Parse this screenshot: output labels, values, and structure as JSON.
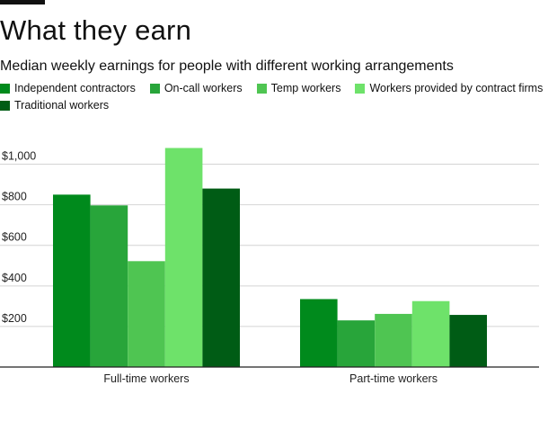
{
  "header": {
    "title": "What they earn",
    "subtitle": "Median weekly earnings for people with different working arrangements"
  },
  "legend": {
    "items": [
      {
        "label": "Independent contractors",
        "color": "#008a1c"
      },
      {
        "label": "On-call workers",
        "color": "#28a53a"
      },
      {
        "label": "Temp workers",
        "color": "#4fc552"
      },
      {
        "label": "Workers provided by contract firms",
        "color": "#6ee26a"
      },
      {
        "label": "Traditional workers",
        "color": "#005c15"
      }
    ]
  },
  "chart_data": {
    "type": "bar",
    "title": "What they earn",
    "subtitle": "Median weekly earnings for people with different working arrangements",
    "xlabel": "",
    "ylabel": "",
    "categories": [
      "Full-time workers",
      "Part-time workers"
    ],
    "series": [
      {
        "name": "Independent contractors",
        "values": [
          850,
          335
        ]
      },
      {
        "name": "On-call workers",
        "values": [
          797,
          230
        ]
      },
      {
        "name": "Temp workers",
        "values": [
          522,
          262
        ]
      },
      {
        "name": "Workers provided by contract firms",
        "values": [
          1080,
          325
        ]
      },
      {
        "name": "Traditional workers",
        "values": [
          880,
          257
        ]
      }
    ],
    "y_ticks": [
      200,
      400,
      600,
      800,
      1000
    ],
    "y_tick_labels": [
      "$200",
      "$400",
      "$600",
      "$800",
      "$1,000"
    ],
    "ylim": [
      0,
      1100
    ],
    "grid": true,
    "legend_position": "top-left"
  }
}
